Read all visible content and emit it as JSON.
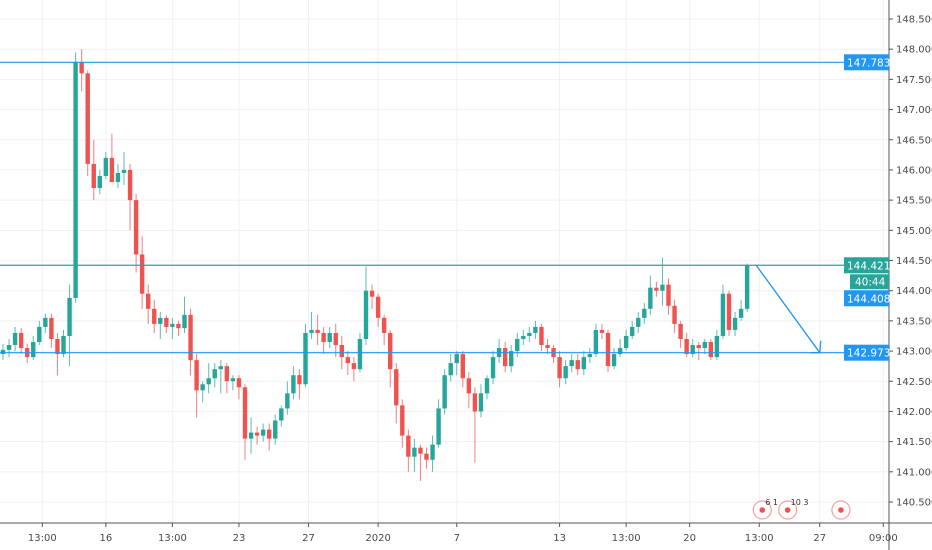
{
  "chart_data": {
    "type": "candlestick",
    "title": "",
    "ylim": [
      140.2,
      148.8
    ],
    "y_ticks": [
      "148.500",
      "148.000",
      "147.500",
      "147.000",
      "146.500",
      "146.000",
      "145.500",
      "145.000",
      "144.500",
      "144.000",
      "143.500",
      "143.000",
      "142.500",
      "142.000",
      "141.500",
      "141.000",
      "140.500"
    ],
    "x_ticks": [
      {
        "label": "13:00",
        "index": 6.5
      },
      {
        "label": "16",
        "index": 17
      },
      {
        "label": "13:00",
        "index": 28
      },
      {
        "label": "23",
        "index": 39
      },
      {
        "label": "27",
        "index": 50.5
      },
      {
        "label": "2020",
        "index": 62
      },
      {
        "label": "7",
        "index": 75
      },
      {
        "label": "13",
        "index": 92
      },
      {
        "label": "13:00",
        "index": 103
      },
      {
        "label": "20",
        "index": 113.5
      },
      {
        "label": "13:00",
        "index": 125
      },
      {
        "label": "27",
        "index": 135
      },
      {
        "label": "09:00",
        "index": 145.5
      }
    ],
    "colors": {
      "up": "#26a69a",
      "down": "#ef5350",
      "line": "#2196f3",
      "grid": "#eef2f6",
      "axis": "#555555"
    },
    "candles": [
      [
        142.95,
        143.12,
        142.85,
        143.02
      ],
      [
        143.02,
        143.2,
        142.9,
        143.1
      ],
      [
        143.1,
        143.4,
        143.0,
        143.3
      ],
      [
        143.3,
        143.38,
        142.95,
        143.05
      ],
      [
        143.05,
        143.12,
        142.8,
        142.9
      ],
      [
        142.9,
        143.25,
        142.85,
        143.15
      ],
      [
        143.15,
        143.5,
        143.1,
        143.4
      ],
      [
        143.4,
        143.62,
        143.3,
        143.55
      ],
      [
        143.55,
        143.62,
        143.05,
        143.2
      ],
      [
        143.2,
        143.3,
        142.6,
        142.95
      ],
      [
        142.95,
        143.35,
        142.9,
        143.25
      ],
      [
        143.25,
        144.1,
        142.75,
        143.88
      ],
      [
        143.88,
        147.95,
        143.8,
        147.79
      ],
      [
        147.79,
        148.0,
        147.3,
        147.6
      ],
      [
        147.6,
        147.65,
        145.9,
        146.1
      ],
      [
        146.1,
        146.5,
        145.5,
        145.7
      ],
      [
        145.7,
        146.0,
        145.6,
        145.9
      ],
      [
        145.9,
        146.3,
        145.85,
        146.2
      ],
      [
        146.2,
        146.6,
        145.8,
        145.8
      ],
      [
        145.8,
        146.1,
        145.7,
        145.95
      ],
      [
        145.95,
        146.3,
        145.75,
        146.0
      ],
      [
        146.0,
        146.1,
        145.0,
        145.5
      ],
      [
        145.5,
        145.6,
        144.3,
        144.6
      ],
      [
        144.6,
        144.9,
        143.7,
        143.95
      ],
      [
        143.95,
        144.1,
        143.45,
        143.7
      ],
      [
        143.7,
        143.85,
        143.3,
        143.45
      ],
      [
        143.45,
        143.65,
        143.2,
        143.55
      ],
      [
        143.55,
        143.6,
        143.3,
        143.4
      ],
      [
        143.4,
        143.55,
        143.2,
        143.45
      ],
      [
        143.45,
        143.5,
        143.25,
        143.38
      ],
      [
        143.38,
        143.9,
        143.3,
        143.6
      ],
      [
        143.6,
        143.7,
        142.6,
        142.85
      ],
      [
        142.85,
        142.95,
        141.9,
        142.35
      ],
      [
        142.35,
        142.5,
        142.15,
        142.45
      ],
      [
        142.45,
        142.8,
        142.3,
        142.55
      ],
      [
        142.55,
        142.8,
        142.4,
        142.7
      ],
      [
        142.7,
        142.85,
        142.3,
        142.75
      ],
      [
        142.75,
        142.8,
        142.3,
        142.5
      ],
      [
        142.5,
        142.6,
        142.35,
        142.55
      ],
      [
        142.55,
        142.6,
        142.2,
        142.4
      ],
      [
        142.4,
        142.45,
        141.2,
        141.55
      ],
      [
        141.55,
        141.9,
        141.3,
        141.65
      ],
      [
        141.65,
        141.75,
        141.45,
        141.6
      ],
      [
        141.6,
        141.8,
        141.5,
        141.7
      ],
      [
        141.7,
        141.8,
        141.35,
        141.55
      ],
      [
        141.55,
        141.95,
        141.45,
        141.85
      ],
      [
        141.85,
        142.1,
        141.75,
        142.05
      ],
      [
        142.05,
        142.5,
        141.95,
        142.3
      ],
      [
        142.3,
        142.75,
        142.2,
        142.6
      ],
      [
        142.6,
        142.7,
        142.2,
        142.45
      ],
      [
        142.45,
        143.45,
        142.4,
        143.3
      ],
      [
        143.3,
        143.65,
        143.2,
        143.35
      ],
      [
        143.35,
        143.6,
        143.1,
        143.3
      ],
      [
        143.3,
        143.4,
        142.95,
        143.15
      ],
      [
        143.15,
        143.4,
        143.05,
        143.3
      ],
      [
        143.3,
        143.45,
        142.9,
        143.1
      ],
      [
        143.1,
        143.25,
        142.7,
        142.9
      ],
      [
        142.9,
        143.0,
        142.6,
        142.8
      ],
      [
        142.8,
        142.9,
        142.5,
        142.7
      ],
      [
        142.7,
        143.3,
        142.65,
        143.2
      ],
      [
        143.2,
        144.4,
        143.1,
        144.0
      ],
      [
        144.0,
        144.1,
        143.7,
        143.9
      ],
      [
        143.9,
        143.95,
        143.4,
        143.55
      ],
      [
        143.55,
        143.6,
        143.1,
        143.3
      ],
      [
        143.3,
        143.35,
        142.4,
        142.7
      ],
      [
        142.7,
        142.8,
        141.8,
        142.1
      ],
      [
        142.1,
        142.2,
        141.4,
        141.6
      ],
      [
        141.6,
        141.7,
        141.0,
        141.25
      ],
      [
        141.25,
        141.55,
        141.0,
        141.4
      ],
      [
        141.4,
        141.45,
        140.85,
        141.3
      ],
      [
        141.3,
        141.4,
        141.05,
        141.2
      ],
      [
        141.2,
        141.6,
        141.0,
        141.45
      ],
      [
        141.45,
        142.2,
        141.4,
        142.05
      ],
      [
        142.05,
        142.7,
        141.95,
        142.6
      ],
      [
        142.6,
        142.95,
        142.5,
        142.8
      ],
      [
        142.8,
        143.0,
        142.6,
        142.95
      ],
      [
        142.95,
        143.0,
        142.4,
        142.55
      ],
      [
        142.55,
        142.65,
        142.05,
        142.3
      ],
      [
        142.3,
        142.4,
        141.15,
        142.0
      ],
      [
        142.0,
        142.45,
        141.9,
        142.3
      ],
      [
        142.3,
        142.6,
        142.2,
        142.55
      ],
      [
        142.55,
        143.0,
        142.45,
        142.9
      ],
      [
        142.9,
        143.2,
        142.8,
        143.05
      ],
      [
        143.05,
        143.15,
        142.65,
        142.75
      ],
      [
        142.75,
        143.1,
        142.65,
        143.0
      ],
      [
        143.0,
        143.3,
        142.9,
        143.2
      ],
      [
        143.2,
        143.35,
        143.1,
        143.25
      ],
      [
        143.25,
        143.4,
        143.15,
        143.3
      ],
      [
        143.3,
        143.5,
        143.2,
        143.4
      ],
      [
        143.4,
        143.45,
        143.0,
        143.1
      ],
      [
        143.1,
        143.2,
        142.95,
        143.05
      ],
      [
        143.05,
        143.1,
        142.8,
        142.9
      ],
      [
        142.9,
        143.0,
        142.4,
        142.55
      ],
      [
        142.55,
        142.85,
        142.45,
        142.75
      ],
      [
        142.75,
        142.95,
        142.65,
        142.85
      ],
      [
        142.85,
        142.95,
        142.6,
        142.7
      ],
      [
        142.7,
        143.0,
        142.6,
        142.9
      ],
      [
        142.9,
        143.05,
        142.8,
        142.95
      ],
      [
        142.95,
        143.45,
        142.9,
        143.35
      ],
      [
        143.35,
        143.45,
        143.2,
        143.3
      ],
      [
        143.3,
        143.35,
        142.65,
        142.75
      ],
      [
        142.75,
        143.05,
        142.7,
        142.95
      ],
      [
        142.95,
        143.2,
        142.9,
        143.05
      ],
      [
        143.05,
        143.35,
        143.0,
        143.25
      ],
      [
        143.25,
        143.5,
        143.2,
        143.4
      ],
      [
        143.4,
        143.65,
        143.3,
        143.55
      ],
      [
        143.55,
        143.8,
        143.45,
        143.7
      ],
      [
        143.7,
        144.25,
        143.6,
        144.05
      ],
      [
        144.05,
        144.15,
        143.9,
        144.0
      ],
      [
        144.0,
        144.55,
        143.75,
        144.1
      ],
      [
        144.1,
        144.2,
        143.6,
        143.75
      ],
      [
        143.75,
        143.85,
        143.3,
        143.45
      ],
      [
        143.45,
        143.5,
        143.05,
        143.2
      ],
      [
        143.2,
        143.3,
        142.9,
        142.95
      ],
      [
        142.95,
        143.2,
        142.9,
        143.1
      ],
      [
        143.1,
        143.15,
        142.85,
        143.05
      ],
      [
        143.05,
        143.2,
        142.95,
        143.15
      ],
      [
        143.15,
        143.2,
        142.85,
        142.9
      ],
      [
        142.9,
        143.35,
        142.85,
        143.25
      ],
      [
        143.25,
        144.1,
        143.2,
        143.95
      ],
      [
        143.95,
        144.0,
        143.25,
        143.35
      ],
      [
        143.35,
        143.65,
        143.25,
        143.55
      ],
      [
        143.55,
        143.85,
        143.5,
        143.7
      ],
      [
        143.7,
        144.45,
        143.65,
        144.42
      ]
    ],
    "horizontal_lines": [
      {
        "price": 147.783,
        "label": "147.783",
        "color": "#2196f3"
      },
      {
        "price": 144.421,
        "label": "144.421",
        "color": "#26a69a"
      },
      {
        "price": 142.973,
        "label": "142.973",
        "color": "#2196f3"
      }
    ],
    "price_tags": [
      {
        "price": 144.408,
        "label": "144.408",
        "color": "#2196f3"
      }
    ],
    "countdown": {
      "label": "40:44",
      "color": "#26a69a"
    },
    "arrow": {
      "from": {
        "index": 124.5,
        "price": 144.421
      },
      "to": {
        "index": 135,
        "price": 142.973
      }
    },
    "events": [
      {
        "index": 125.5,
        "label": "6 1"
      },
      {
        "index": 129.7,
        "label": "10 3"
      },
      {
        "index": 138.5,
        "label": ""
      }
    ]
  }
}
